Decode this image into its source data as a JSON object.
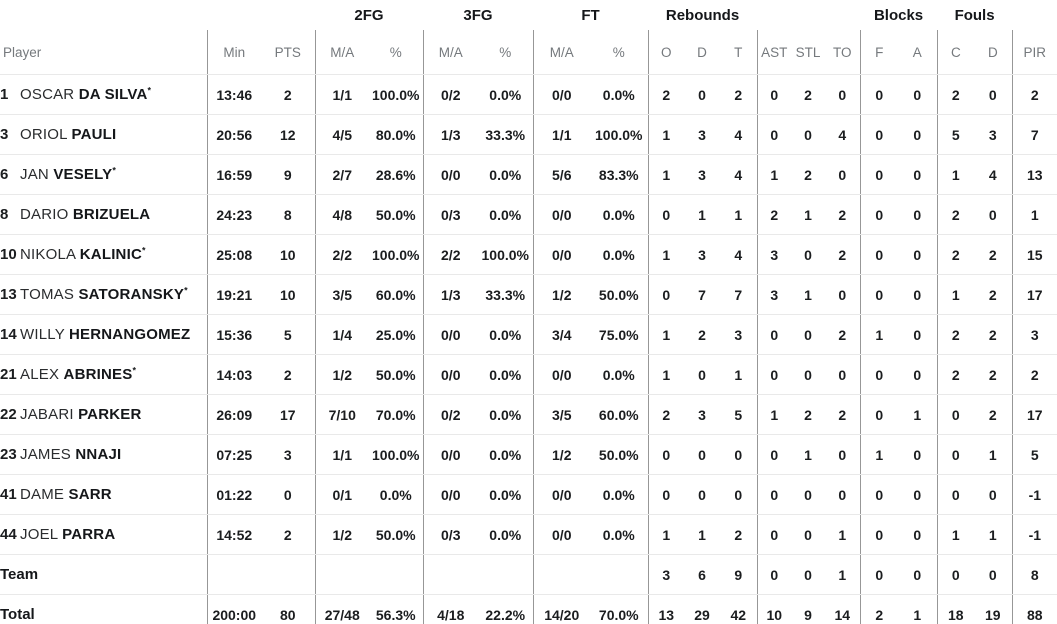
{
  "colors": {
    "background": "#ffffff",
    "text": "#1b1d1f",
    "header_text": "#75797d",
    "group_divider": "#979797",
    "row_border": "#e9e9e9"
  },
  "table": {
    "player_col_header": "Player",
    "starter_marker": "*",
    "stat_groups": [
      {
        "label": "",
        "cols": [
          "Min",
          "PTS"
        ]
      },
      {
        "label": "2FG",
        "cols": [
          "M/A",
          "%"
        ]
      },
      {
        "label": "3FG",
        "cols": [
          "M/A",
          "%"
        ]
      },
      {
        "label": "FT",
        "cols": [
          "M/A",
          "%"
        ]
      },
      {
        "label": "Rebounds",
        "cols": [
          "O",
          "D",
          "T"
        ]
      },
      {
        "label": "",
        "cols": [
          "AST",
          "STL",
          "TO"
        ]
      },
      {
        "label": "Blocks",
        "cols": [
          "F",
          "A"
        ]
      },
      {
        "label": "Fouls",
        "cols": [
          "C",
          "D"
        ]
      },
      {
        "label": "",
        "cols": [
          "PIR"
        ]
      }
    ],
    "stat_keys": [
      "min",
      "pts",
      "fg2-ma",
      "fg2-pct",
      "fg3-ma",
      "fg3-pct",
      "ft-ma",
      "ft-pct",
      "reb-o",
      "reb-d",
      "reb-t",
      "ast",
      "stl",
      "to",
      "blk-f",
      "blk-a",
      "foul-c",
      "foul-d",
      "pir"
    ],
    "rows": [
      {
        "number": "1",
        "first_name": "OSCAR",
        "last_name": "DA SILVA",
        "starter": true,
        "stats": [
          "13:46",
          "2",
          "1/1",
          "100.0%",
          "0/2",
          "0.0%",
          "0/0",
          "0.0%",
          "2",
          "0",
          "2",
          "0",
          "2",
          "0",
          "0",
          "0",
          "2",
          "0",
          "2"
        ]
      },
      {
        "number": "3",
        "first_name": "ORIOL",
        "last_name": "PAULI",
        "starter": false,
        "stats": [
          "20:56",
          "12",
          "4/5",
          "80.0%",
          "1/3",
          "33.3%",
          "1/1",
          "100.0%",
          "1",
          "3",
          "4",
          "0",
          "0",
          "4",
          "0",
          "0",
          "5",
          "3",
          "7"
        ]
      },
      {
        "number": "6",
        "first_name": "JAN",
        "last_name": "VESELY",
        "starter": true,
        "stats": [
          "16:59",
          "9",
          "2/7",
          "28.6%",
          "0/0",
          "0.0%",
          "5/6",
          "83.3%",
          "1",
          "3",
          "4",
          "1",
          "2",
          "0",
          "0",
          "0",
          "1",
          "4",
          "13"
        ]
      },
      {
        "number": "8",
        "first_name": "DARIO",
        "last_name": "BRIZUELA",
        "starter": false,
        "stats": [
          "24:23",
          "8",
          "4/8",
          "50.0%",
          "0/3",
          "0.0%",
          "0/0",
          "0.0%",
          "0",
          "1",
          "1",
          "2",
          "1",
          "2",
          "0",
          "0",
          "2",
          "0",
          "1"
        ]
      },
      {
        "number": "10",
        "first_name": "NIKOLA",
        "last_name": "KALINIC",
        "starter": true,
        "stats": [
          "25:08",
          "10",
          "2/2",
          "100.0%",
          "2/2",
          "100.0%",
          "0/0",
          "0.0%",
          "1",
          "3",
          "4",
          "3",
          "0",
          "2",
          "0",
          "0",
          "2",
          "2",
          "15"
        ]
      },
      {
        "number": "13",
        "first_name": "TOMAS",
        "last_name": "SATORANSKY",
        "starter": true,
        "stats": [
          "19:21",
          "10",
          "3/5",
          "60.0%",
          "1/3",
          "33.3%",
          "1/2",
          "50.0%",
          "0",
          "7",
          "7",
          "3",
          "1",
          "0",
          "0",
          "0",
          "1",
          "2",
          "17"
        ]
      },
      {
        "number": "14",
        "first_name": "WILLY",
        "last_name": "HERNANGOMEZ",
        "starter": false,
        "stats": [
          "15:36",
          "5",
          "1/4",
          "25.0%",
          "0/0",
          "0.0%",
          "3/4",
          "75.0%",
          "1",
          "2",
          "3",
          "0",
          "0",
          "2",
          "1",
          "0",
          "2",
          "2",
          "3"
        ]
      },
      {
        "number": "21",
        "first_name": "ALEX",
        "last_name": "ABRINES",
        "starter": true,
        "stats": [
          "14:03",
          "2",
          "1/2",
          "50.0%",
          "0/0",
          "0.0%",
          "0/0",
          "0.0%",
          "1",
          "0",
          "1",
          "0",
          "0",
          "0",
          "0",
          "0",
          "2",
          "2",
          "2"
        ]
      },
      {
        "number": "22",
        "first_name": "JABARI",
        "last_name": "PARKER",
        "starter": false,
        "stats": [
          "26:09",
          "17",
          "7/10",
          "70.0%",
          "0/2",
          "0.0%",
          "3/5",
          "60.0%",
          "2",
          "3",
          "5",
          "1",
          "2",
          "2",
          "0",
          "1",
          "0",
          "2",
          "17"
        ]
      },
      {
        "number": "23",
        "first_name": "JAMES",
        "last_name": "NNAJI",
        "starter": false,
        "stats": [
          "07:25",
          "3",
          "1/1",
          "100.0%",
          "0/0",
          "0.0%",
          "1/2",
          "50.0%",
          "0",
          "0",
          "0",
          "0",
          "1",
          "0",
          "1",
          "0",
          "0",
          "1",
          "5"
        ]
      },
      {
        "number": "41",
        "first_name": "DAME",
        "last_name": "SARR",
        "starter": false,
        "stats": [
          "01:22",
          "0",
          "0/1",
          "0.0%",
          "0/0",
          "0.0%",
          "0/0",
          "0.0%",
          "0",
          "0",
          "0",
          "0",
          "0",
          "0",
          "0",
          "0",
          "0",
          "0",
          "-1"
        ]
      },
      {
        "number": "44",
        "first_name": "JOEL",
        "last_name": "PARRA",
        "starter": false,
        "stats": [
          "14:52",
          "2",
          "1/2",
          "50.0%",
          "0/3",
          "0.0%",
          "0/0",
          "0.0%",
          "1",
          "1",
          "2",
          "0",
          "0",
          "1",
          "0",
          "0",
          "1",
          "1",
          "-1"
        ]
      }
    ],
    "summary_rows": [
      {
        "label": "Team",
        "stats": [
          "",
          "",
          "",
          "",
          "",
          "",
          "",
          "",
          "3",
          "6",
          "9",
          "0",
          "0",
          "1",
          "0",
          "0",
          "0",
          "0",
          "8"
        ]
      },
      {
        "label": "Total",
        "stats": [
          "200:00",
          "80",
          "27/48",
          "56.3%",
          "4/18",
          "22.2%",
          "14/20",
          "70.0%",
          "13",
          "29",
          "42",
          "10",
          "9",
          "14",
          "2",
          "1",
          "18",
          "19",
          "88"
        ]
      }
    ]
  }
}
